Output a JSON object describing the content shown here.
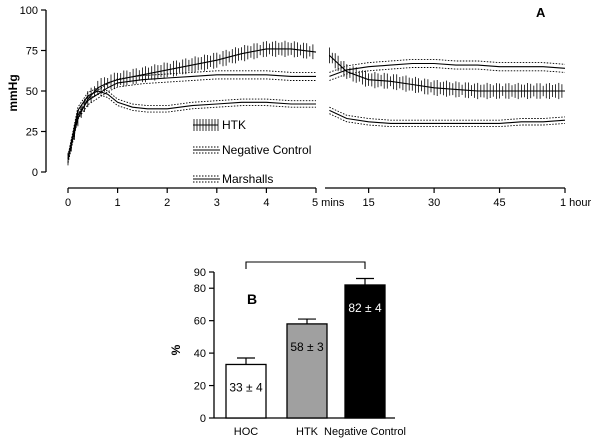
{
  "chart_data": [
    {
      "panel": "A",
      "type": "line",
      "ylabel": "mmHg",
      "ylim": [
        0,
        100
      ],
      "yticks": [
        "0",
        "25",
        "50",
        "75",
        "100"
      ],
      "x_segments": [
        {
          "unit": "mins",
          "range": [
            0,
            5
          ],
          "ticks": [
            "0",
            "1",
            "2",
            "3",
            "4",
            "5 mins"
          ]
        },
        {
          "unit": "mins",
          "range": [
            5,
            60
          ],
          "ticks": [
            "15",
            "30",
            "45",
            "1 hour"
          ]
        }
      ],
      "series": [
        {
          "name": "HTK",
          "style": "mean with vertical error bars",
          "points": [
            [
              0,
              8
            ],
            [
              0.2,
              33
            ],
            [
              0.4,
              45
            ],
            [
              0.6,
              52
            ],
            [
              0.8,
              55
            ],
            [
              1,
              57
            ],
            [
              1.5,
              60
            ],
            [
              2,
              63
            ],
            [
              2.5,
              66
            ],
            [
              3,
              69
            ],
            [
              3.5,
              73
            ],
            [
              4,
              76
            ],
            [
              4.5,
              76
            ],
            [
              5,
              74
            ],
            [
              6,
              72
            ],
            [
              10,
              62
            ],
            [
              15,
              57
            ],
            [
              20,
              56
            ],
            [
              25,
              54
            ],
            [
              30,
              52
            ],
            [
              35,
              51
            ],
            [
              40,
              50
            ],
            [
              45,
              50
            ],
            [
              50,
              50
            ],
            [
              55,
              50
            ],
            [
              60,
              50
            ]
          ],
          "error": 5
        },
        {
          "name": "Negative Control",
          "style": "mean with dotted SEM band",
          "points": [
            [
              0,
              8
            ],
            [
              0.2,
              35
            ],
            [
              0.4,
              44
            ],
            [
              0.6,
              48
            ],
            [
              0.8,
              52
            ],
            [
              1,
              55
            ],
            [
              1.5,
              57
            ],
            [
              2,
              58
            ],
            [
              2.5,
              59
            ],
            [
              3,
              60
            ],
            [
              3.5,
              60
            ],
            [
              4,
              60
            ],
            [
              4.5,
              59
            ],
            [
              5,
              59
            ],
            [
              6,
              59
            ],
            [
              10,
              63
            ],
            [
              15,
              65
            ],
            [
              20,
              66
            ],
            [
              25,
              67
            ],
            [
              30,
              67
            ],
            [
              35,
              66
            ],
            [
              40,
              66
            ],
            [
              45,
              65
            ],
            [
              50,
              65
            ],
            [
              55,
              65
            ],
            [
              60,
              64
            ]
          ],
          "error": 2.5
        },
        {
          "name": "Marshalls",
          "style": "mean with dotted SEM band",
          "points": [
            [
              0,
              8
            ],
            [
              0.2,
              38
            ],
            [
              0.4,
              47
            ],
            [
              0.6,
              50
            ],
            [
              0.8,
              48
            ],
            [
              1,
              43
            ],
            [
              1.3,
              40
            ],
            [
              1.6,
              39
            ],
            [
              2,
              39
            ],
            [
              2.5,
              41
            ],
            [
              3,
              42
            ],
            [
              3.5,
              43
            ],
            [
              4,
              43
            ],
            [
              4.5,
              42
            ],
            [
              5,
              42
            ],
            [
              6,
              38
            ],
            [
              10,
              33
            ],
            [
              15,
              31
            ],
            [
              20,
              30
            ],
            [
              25,
              30
            ],
            [
              30,
              30
            ],
            [
              35,
              30
            ],
            [
              40,
              30
            ],
            [
              45,
              30
            ],
            [
              50,
              31
            ],
            [
              55,
              31
            ],
            [
              60,
              32
            ]
          ],
          "error": 2
        }
      ],
      "annotation": "A"
    },
    {
      "panel": "B",
      "type": "bar",
      "ylabel": "%",
      "ylim": [
        0,
        90
      ],
      "yticks": [
        "0",
        "20",
        "40",
        "60",
        "80",
        "90"
      ],
      "categories": [
        "HOC",
        "HTK",
        "Negative Control"
      ],
      "values": [
        33,
        58,
        82
      ],
      "errors": [
        4,
        3,
        4
      ],
      "bar_labels": [
        "33 ± 4",
        "58 ± 3",
        "82 ± 4"
      ],
      "bar_colors": [
        "#ffffff",
        "#a0a0a0",
        "#000000"
      ],
      "label_colors": [
        "#000000",
        "#000000",
        "#ffffff"
      ],
      "annotation": "B",
      "comparison_bracket": [
        "HOC",
        "Negative Control"
      ]
    }
  ]
}
